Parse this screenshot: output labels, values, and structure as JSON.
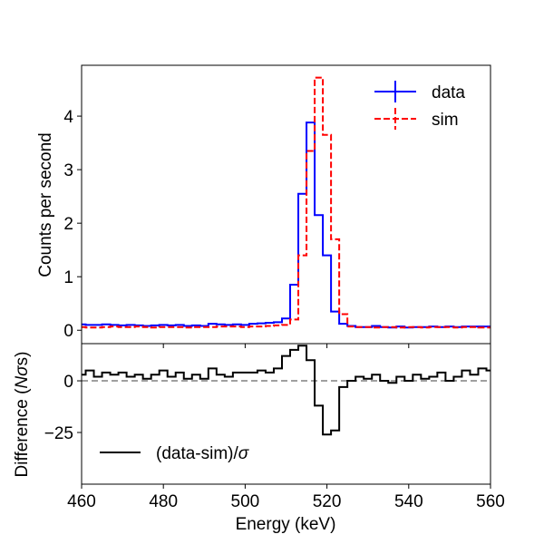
{
  "chart_data": [
    {
      "panel": "main",
      "type": "line",
      "drawstyle": "steps-mid",
      "xlim": [
        460,
        560
      ],
      "ylim": [
        -0.25,
        4.95
      ],
      "xlabel": "",
      "ylabel": "Counts per second",
      "yticks": [
        0,
        1,
        2,
        3,
        4
      ],
      "ytick_labels": [
        "0",
        "1",
        "2",
        "3",
        "4"
      ],
      "bin_centers": [
        460,
        462,
        464,
        466,
        468,
        470,
        472,
        474,
        476,
        478,
        480,
        482,
        484,
        486,
        488,
        490,
        492,
        494,
        496,
        498,
        500,
        502,
        504,
        506,
        508,
        510,
        512,
        514,
        516,
        518,
        520,
        522,
        524,
        526,
        528,
        530,
        532,
        534,
        536,
        538,
        540,
        542,
        544,
        546,
        548,
        550,
        552,
        554,
        556,
        558,
        560
      ],
      "series": [
        {
          "name": "data",
          "color": "#0000ff",
          "linestyle": "solid",
          "values": [
            0.11,
            0.1,
            0.1,
            0.11,
            0.1,
            0.09,
            0.1,
            0.09,
            0.08,
            0.09,
            0.1,
            0.09,
            0.1,
            0.08,
            0.09,
            0.08,
            0.12,
            0.11,
            0.1,
            0.11,
            0.1,
            0.12,
            0.13,
            0.14,
            0.15,
            0.22,
            0.85,
            2.55,
            3.88,
            2.15,
            1.4,
            0.35,
            0.12,
            0.08,
            0.06,
            0.06,
            0.08,
            0.06,
            0.05,
            0.07,
            0.05,
            0.06,
            0.06,
            0.07,
            0.06,
            0.07,
            0.06,
            0.07,
            0.07,
            0.07,
            0.07
          ]
        },
        {
          "name": "sim",
          "color": "#ff0000",
          "linestyle": "dashed",
          "values": [
            0.06,
            0.05,
            0.05,
            0.06,
            0.07,
            0.06,
            0.06,
            0.07,
            0.06,
            0.05,
            0.06,
            0.06,
            0.06,
            0.05,
            0.06,
            0.06,
            0.06,
            0.07,
            0.07,
            0.07,
            0.06,
            0.07,
            0.07,
            0.08,
            0.09,
            0.1,
            0.2,
            1.4,
            3.35,
            4.72,
            3.65,
            1.7,
            0.3,
            0.07,
            0.06,
            0.06,
            0.05,
            0.06,
            0.06,
            0.05,
            0.06,
            0.06,
            0.05,
            0.06,
            0.06,
            0.06,
            0.05,
            0.06,
            0.06,
            0.05,
            0.05
          ]
        }
      ],
      "legend": {
        "location": "top-right",
        "entries": [
          "data",
          "sim"
        ]
      }
    },
    {
      "panel": "residual",
      "type": "line",
      "drawstyle": "steps-mid",
      "xlim": [
        460,
        560
      ],
      "ylim": [
        -50,
        18
      ],
      "xlabel": "Energy (keV)",
      "ylabel": "Difference (Nσs)",
      "ylabel_parts": [
        "Difference (",
        "Nσ",
        "s)"
      ],
      "xticks": [
        460,
        480,
        500,
        520,
        540,
        560
      ],
      "xtick_labels": [
        "460",
        "480",
        "500",
        "520",
        "540",
        "560"
      ],
      "yticks": [
        0,
        -25
      ],
      "ytick_labels": [
        "0",
        "−25"
      ],
      "reference_line": {
        "y": 0,
        "color": "#808080",
        "linestyle": "dashed"
      },
      "bin_centers": [
        460,
        462,
        464,
        466,
        468,
        470,
        472,
        474,
        476,
        478,
        480,
        482,
        484,
        486,
        488,
        490,
        492,
        494,
        496,
        498,
        500,
        502,
        504,
        506,
        508,
        510,
        512,
        514,
        516,
        518,
        520,
        522,
        524,
        526,
        528,
        530,
        532,
        534,
        536,
        538,
        540,
        542,
        544,
        546,
        548,
        550,
        552,
        554,
        556,
        558,
        560
      ],
      "series": [
        {
          "name": "(data-sim)/σ",
          "label_parts": [
            "(data-sim)/",
            "σ"
          ],
          "color": "#000000",
          "linestyle": "solid",
          "values": [
            3,
            5,
            2,
            4,
            3,
            4,
            2,
            3,
            1,
            3,
            5,
            2,
            4,
            1,
            3,
            1,
            6,
            3,
            2,
            4,
            4,
            4,
            5,
            4,
            6,
            12,
            15,
            17,
            10,
            -12,
            -26,
            -24,
            -3,
            0,
            2,
            1,
            3,
            0,
            -1,
            2,
            0,
            3,
            1,
            2,
            4,
            0,
            2,
            5,
            3,
            6,
            5
          ]
        }
      ],
      "legend": {
        "location": "bottom-left",
        "entries": [
          "(data-sim)/σ"
        ]
      }
    }
  ]
}
